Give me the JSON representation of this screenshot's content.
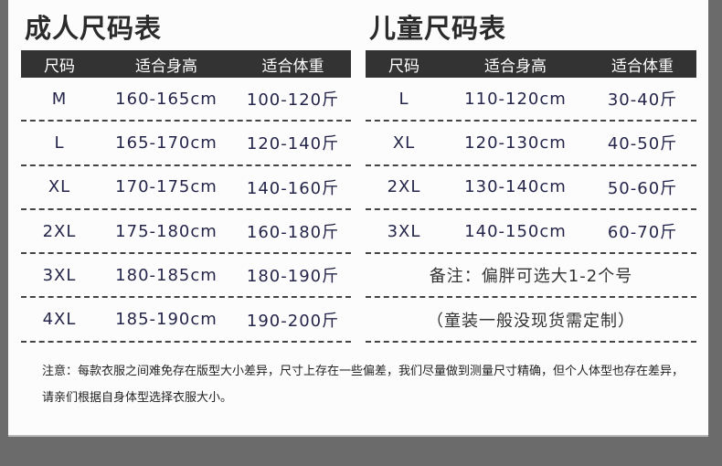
{
  "adult": {
    "title": "成人尺码表",
    "headers": [
      "尺码",
      "适合身高",
      "适合体重"
    ],
    "rows": [
      [
        "M",
        "160-165cm",
        "100-120斤"
      ],
      [
        "L",
        "165-170cm",
        "120-140斤"
      ],
      [
        "XL",
        "170-175cm",
        "140-160斤"
      ],
      [
        "2XL",
        "175-180cm",
        "160-180斤"
      ],
      [
        "3XL",
        "180-185cm",
        "180-190斤"
      ],
      [
        "4XL",
        "185-190cm",
        "190-200斤"
      ]
    ]
  },
  "kids": {
    "title": "儿童尺码表",
    "headers": [
      "尺码",
      "适合身高",
      "适合体重"
    ],
    "rows": [
      [
        "L",
        "110-120cm",
        "30-40斤"
      ],
      [
        "XL",
        "120-130cm",
        "40-50斤"
      ],
      [
        "2XL",
        "130-140cm",
        "50-60斤"
      ],
      [
        "3XL",
        "140-150cm",
        "60-70斤"
      ]
    ],
    "notes": [
      "备注：偏胖可选大1-2个号",
      "（童装一般没现货需定制）"
    ]
  },
  "footer": "注意：每款衣服之间难免存在版型大小差异，尺寸上存在一些偏差，我们尽量做到测量尺寸精确，但个人体型也存在差异，请亲们根据自身体型选择衣服大小。"
}
